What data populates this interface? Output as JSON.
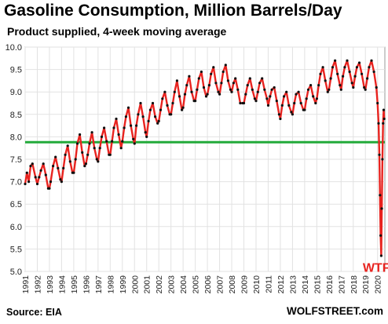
{
  "chart_data": {
    "type": "line",
    "title": "Gasoline Consumption, Million Barrels/Day",
    "subtitle": "Product supplied, 4-week moving average",
    "ylim": [
      5.0,
      10.0
    ],
    "yticks": [
      "5.0",
      "5.5",
      "6.0",
      "6.5",
      "7.0",
      "7.5",
      "8.0",
      "8.5",
      "9.0",
      "9.5",
      "10.0"
    ],
    "xlim": [
      1991,
      2020.6
    ],
    "xticks": [
      "1991",
      "1992",
      "1993",
      "1994",
      "1995",
      "1996",
      "1997",
      "1998",
      "1999",
      "2000",
      "2001",
      "2002",
      "2003",
      "2004",
      "2005",
      "2006",
      "2007",
      "2008",
      "2009",
      "2010",
      "2011",
      "2012",
      "2013",
      "2014",
      "2015",
      "2016",
      "2017",
      "2018",
      "2019",
      "2020"
    ],
    "grid": true,
    "series": [
      {
        "color": "#e8231f",
        "marker_color": "#111111",
        "x": [
          1991.0,
          1991.15,
          1991.3,
          1991.45,
          1991.6,
          1991.85,
          1992.0,
          1992.15,
          1992.3,
          1992.5,
          1992.7,
          1992.9,
          1993.0,
          1993.1,
          1993.3,
          1993.5,
          1993.7,
          1993.9,
          1994.0,
          1994.15,
          1994.3,
          1994.5,
          1994.7,
          1994.9,
          1995.0,
          1995.15,
          1995.3,
          1995.5,
          1995.7,
          1995.9,
          1996.0,
          1996.15,
          1996.3,
          1996.5,
          1996.7,
          1996.9,
          1997.0,
          1997.15,
          1997.3,
          1997.5,
          1997.7,
          1997.9,
          1998.0,
          1998.15,
          1998.3,
          1998.5,
          1998.7,
          1998.9,
          1999.0,
          1999.15,
          1999.3,
          1999.5,
          1999.7,
          1999.9,
          2000.0,
          2000.15,
          2000.3,
          2000.5,
          2000.7,
          2000.9,
          2001.0,
          2001.15,
          2001.3,
          2001.5,
          2001.7,
          2001.9,
          2002.0,
          2002.15,
          2002.3,
          2002.5,
          2002.7,
          2002.9,
          2003.0,
          2003.15,
          2003.3,
          2003.5,
          2003.7,
          2003.9,
          2004.0,
          2004.15,
          2004.3,
          2004.5,
          2004.7,
          2004.9,
          2005.0,
          2005.15,
          2005.3,
          2005.5,
          2005.7,
          2005.9,
          2006.0,
          2006.15,
          2006.3,
          2006.5,
          2006.7,
          2006.9,
          2007.0,
          2007.15,
          2007.3,
          2007.5,
          2007.7,
          2007.9,
          2008.0,
          2008.15,
          2008.3,
          2008.5,
          2008.7,
          2008.9,
          2009.0,
          2009.15,
          2009.3,
          2009.5,
          2009.7,
          2009.9,
          2010.0,
          2010.15,
          2010.3,
          2010.5,
          2010.7,
          2010.9,
          2011.0,
          2011.15,
          2011.3,
          2011.5,
          2011.7,
          2011.9,
          2012.0,
          2012.15,
          2012.3,
          2012.5,
          2012.7,
          2012.9,
          2013.0,
          2013.15,
          2013.3,
          2013.5,
          2013.7,
          2013.9,
          2014.0,
          2014.15,
          2014.3,
          2014.5,
          2014.7,
          2014.9,
          2015.0,
          2015.15,
          2015.3,
          2015.5,
          2015.7,
          2015.9,
          2016.0,
          2016.15,
          2016.3,
          2016.5,
          2016.7,
          2016.9,
          2017.0,
          2017.15,
          2017.3,
          2017.5,
          2017.7,
          2017.9,
          2018.0,
          2018.15,
          2018.3,
          2018.5,
          2018.7,
          2018.9,
          2019.0,
          2019.15,
          2019.3,
          2019.5,
          2019.7,
          2019.9,
          2020.0,
          2020.08,
          2020.15,
          2020.2,
          2020.25,
          2020.3,
          2020.35,
          2020.4,
          2020.45,
          2020.5,
          2020.55
        ],
        "y": [
          6.95,
          7.2,
          7.0,
          7.35,
          7.4,
          7.1,
          6.95,
          7.1,
          7.25,
          7.4,
          7.15,
          6.85,
          6.85,
          7.0,
          7.35,
          7.55,
          7.3,
          7.05,
          7.0,
          7.3,
          7.6,
          7.8,
          7.45,
          7.2,
          7.2,
          7.5,
          7.85,
          8.05,
          7.65,
          7.35,
          7.4,
          7.6,
          7.85,
          8.1,
          7.75,
          7.5,
          7.45,
          7.75,
          8.0,
          8.2,
          7.9,
          7.6,
          7.6,
          7.9,
          8.2,
          8.4,
          8.05,
          7.75,
          7.9,
          8.2,
          8.45,
          8.65,
          8.25,
          7.95,
          7.85,
          8.25,
          8.5,
          8.75,
          8.45,
          8.1,
          8.0,
          8.35,
          8.6,
          8.75,
          8.45,
          8.3,
          8.35,
          8.6,
          8.85,
          9.0,
          8.7,
          8.5,
          8.5,
          8.75,
          9.0,
          9.25,
          8.9,
          8.6,
          8.65,
          8.95,
          9.15,
          9.35,
          9.0,
          8.8,
          8.8,
          9.05,
          9.3,
          9.45,
          9.1,
          8.9,
          8.95,
          9.15,
          9.4,
          9.55,
          9.2,
          9.0,
          8.95,
          9.2,
          9.45,
          9.6,
          9.25,
          9.05,
          9.0,
          9.2,
          9.3,
          9.05,
          8.75,
          8.75,
          8.75,
          8.95,
          9.15,
          9.3,
          9.05,
          8.85,
          8.8,
          9.0,
          9.2,
          9.3,
          9.05,
          8.85,
          8.7,
          8.9,
          9.05,
          9.1,
          8.8,
          8.5,
          8.4,
          8.7,
          8.9,
          9.0,
          8.7,
          8.55,
          8.5,
          8.75,
          8.95,
          9.0,
          8.75,
          8.6,
          8.6,
          8.85,
          9.05,
          9.15,
          8.9,
          8.75,
          8.85,
          9.15,
          9.4,
          9.55,
          9.25,
          9.0,
          9.05,
          9.3,
          9.55,
          9.7,
          9.4,
          9.15,
          9.05,
          9.35,
          9.55,
          9.7,
          9.45,
          9.2,
          9.1,
          9.35,
          9.55,
          9.65,
          9.4,
          9.1,
          9.05,
          9.3,
          9.55,
          9.7,
          9.45,
          9.1,
          8.75,
          8.3,
          7.6,
          6.7,
          5.8,
          5.35,
          6.4,
          7.5,
          8.3,
          8.6,
          8.4
        ]
      }
    ],
    "reference_line": {
      "y": 7.88,
      "color": "#22aa3a"
    },
    "annotation": {
      "text": "WTF",
      "x": 2019.9,
      "y": 5.1
    }
  },
  "footer": {
    "source": "Source: EIA",
    "brand": "WOLFSTREET.com"
  }
}
